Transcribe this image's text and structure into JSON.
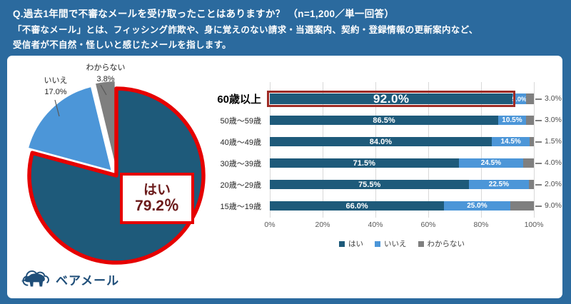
{
  "header": {
    "question": "Q.過去1年間で不審なメールを受け取ったことはありますか？ （n=1,200／単一回答）",
    "note_line1": "「不審なメール」とは、フィッシング詐欺や、身に覚えのない請求・当選案内、契約・登録情報の更新案内など、",
    "note_line2": "受信者が不自然・怪しいと感じたメールを指します。"
  },
  "logo": {
    "text": "ベアメール"
  },
  "colors": {
    "frame_blue": "#2B6A9E",
    "yes_dark_blue": "#1E5A7A",
    "no_light_blue": "#4C96D8",
    "unknown_gray": "#7F7F7F",
    "pie_outline_red": "#E60000",
    "bar_highlight_red": "#9E2B25",
    "grid_gray": "#D9D9D9"
  },
  "chart_data": [
    {
      "type": "pie",
      "labels": [
        "はい",
        "いいえ",
        "わからない"
      ],
      "values": [
        79.2,
        17.0,
        3.8
      ],
      "value_texts": [
        "79.2%",
        "17.0%",
        "3.8%"
      ],
      "colors": [
        "#1E5A7A",
        "#4C96D8",
        "#7F7F7F"
      ],
      "highlighted_slice": "はい",
      "callout": {
        "label": "はい",
        "value_text": "79.2％"
      }
    },
    {
      "type": "stacked-bar-horizontal",
      "categories": [
        "60歳以上",
        "50歳〜59歳",
        "40歳〜49歳",
        "30歳〜39歳",
        "20歳〜29歳",
        "15歳〜19歳"
      ],
      "series": [
        {
          "name": "はい",
          "color": "#1E5A7A",
          "values": [
            92.0,
            86.5,
            84.0,
            71.5,
            75.5,
            66.0
          ]
        },
        {
          "name": "いいえ",
          "color": "#4C96D8",
          "values": [
            5.0,
            10.5,
            14.5,
            24.5,
            22.5,
            25.0
          ]
        },
        {
          "name": "わからない",
          "color": "#7F7F7F",
          "values": [
            3.0,
            3.0,
            1.5,
            4.0,
            2.0,
            9.0
          ]
        }
      ],
      "xlim": [
        0,
        100
      ],
      "xticks": [
        "0%",
        "20%",
        "40%",
        "60%",
        "80%",
        "100%"
      ],
      "legend": [
        "はい",
        "いいえ",
        "わからない"
      ],
      "legend_position": "bottom",
      "grid": true,
      "highlight_row": 0
    }
  ]
}
